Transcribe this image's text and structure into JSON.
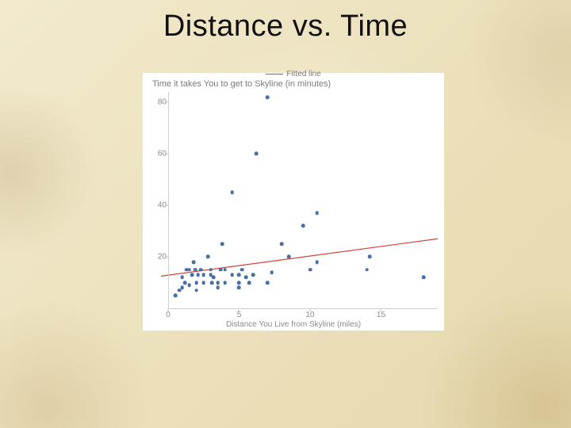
{
  "slide": {
    "title": "Distance vs. Time"
  },
  "chart": {
    "type": "scatter",
    "chart_title": "Time it takes You to get to Skyline (in minutes)",
    "legend_label": "Fitted line",
    "xlabel": "Distance You Live from Skyline (miles)",
    "xlim": [
      0,
      19
    ],
    "ylim": [
      0,
      84
    ],
    "xticks": [
      0,
      5,
      10,
      15
    ],
    "yticks": [
      20,
      40,
      60,
      80
    ],
    "background_color": "#ffffff",
    "tick_fontsize": 10,
    "title_fontsize": 11,
    "label_fontsize": 10,
    "text_color": "#8a8a8a",
    "point_color": "#4a6fa3",
    "point_radius": 2.3,
    "line_color": "#d4403a",
    "line_width": 1.2,
    "fit_line": {
      "x1": -0.5,
      "y1": 12.5,
      "x2": 19,
      "y2": 27
    },
    "points": [
      [
        0.5,
        5
      ],
      [
        0.8,
        7
      ],
      [
        1.0,
        12
      ],
      [
        1.0,
        8
      ],
      [
        1.2,
        10
      ],
      [
        1.3,
        15
      ],
      [
        1.5,
        9
      ],
      [
        1.5,
        15
      ],
      [
        1.7,
        13
      ],
      [
        1.8,
        18
      ],
      [
        1.9,
        15
      ],
      [
        2.0,
        7
      ],
      [
        2.0,
        10
      ],
      [
        2.1,
        13
      ],
      [
        2.3,
        15
      ],
      [
        2.5,
        13
      ],
      [
        2.5,
        10
      ],
      [
        2.8,
        20
      ],
      [
        3.0,
        13
      ],
      [
        3.0,
        15
      ],
      [
        3.1,
        10
      ],
      [
        3.2,
        12
      ],
      [
        3.5,
        8
      ],
      [
        3.5,
        10
      ],
      [
        3.7,
        15
      ],
      [
        3.8,
        25
      ],
      [
        4.0,
        10
      ],
      [
        4.0,
        15
      ],
      [
        4.5,
        13
      ],
      [
        4.5,
        45
      ],
      [
        5.0,
        8
      ],
      [
        5.0,
        10
      ],
      [
        5.0,
        13
      ],
      [
        5.2,
        15
      ],
      [
        5.5,
        12
      ],
      [
        5.7,
        10
      ],
      [
        6.0,
        13
      ],
      [
        6.2,
        60
      ],
      [
        7.0,
        10
      ],
      [
        7.0,
        82
      ],
      [
        7.3,
        14
      ],
      [
        8.0,
        25
      ],
      [
        8.5,
        20
      ],
      [
        9.5,
        32
      ],
      [
        10.0,
        15
      ],
      [
        10.5,
        18
      ],
      [
        10.5,
        37
      ],
      [
        14.0,
        15
      ],
      [
        14.2,
        20
      ],
      [
        18.0,
        12
      ]
    ]
  }
}
